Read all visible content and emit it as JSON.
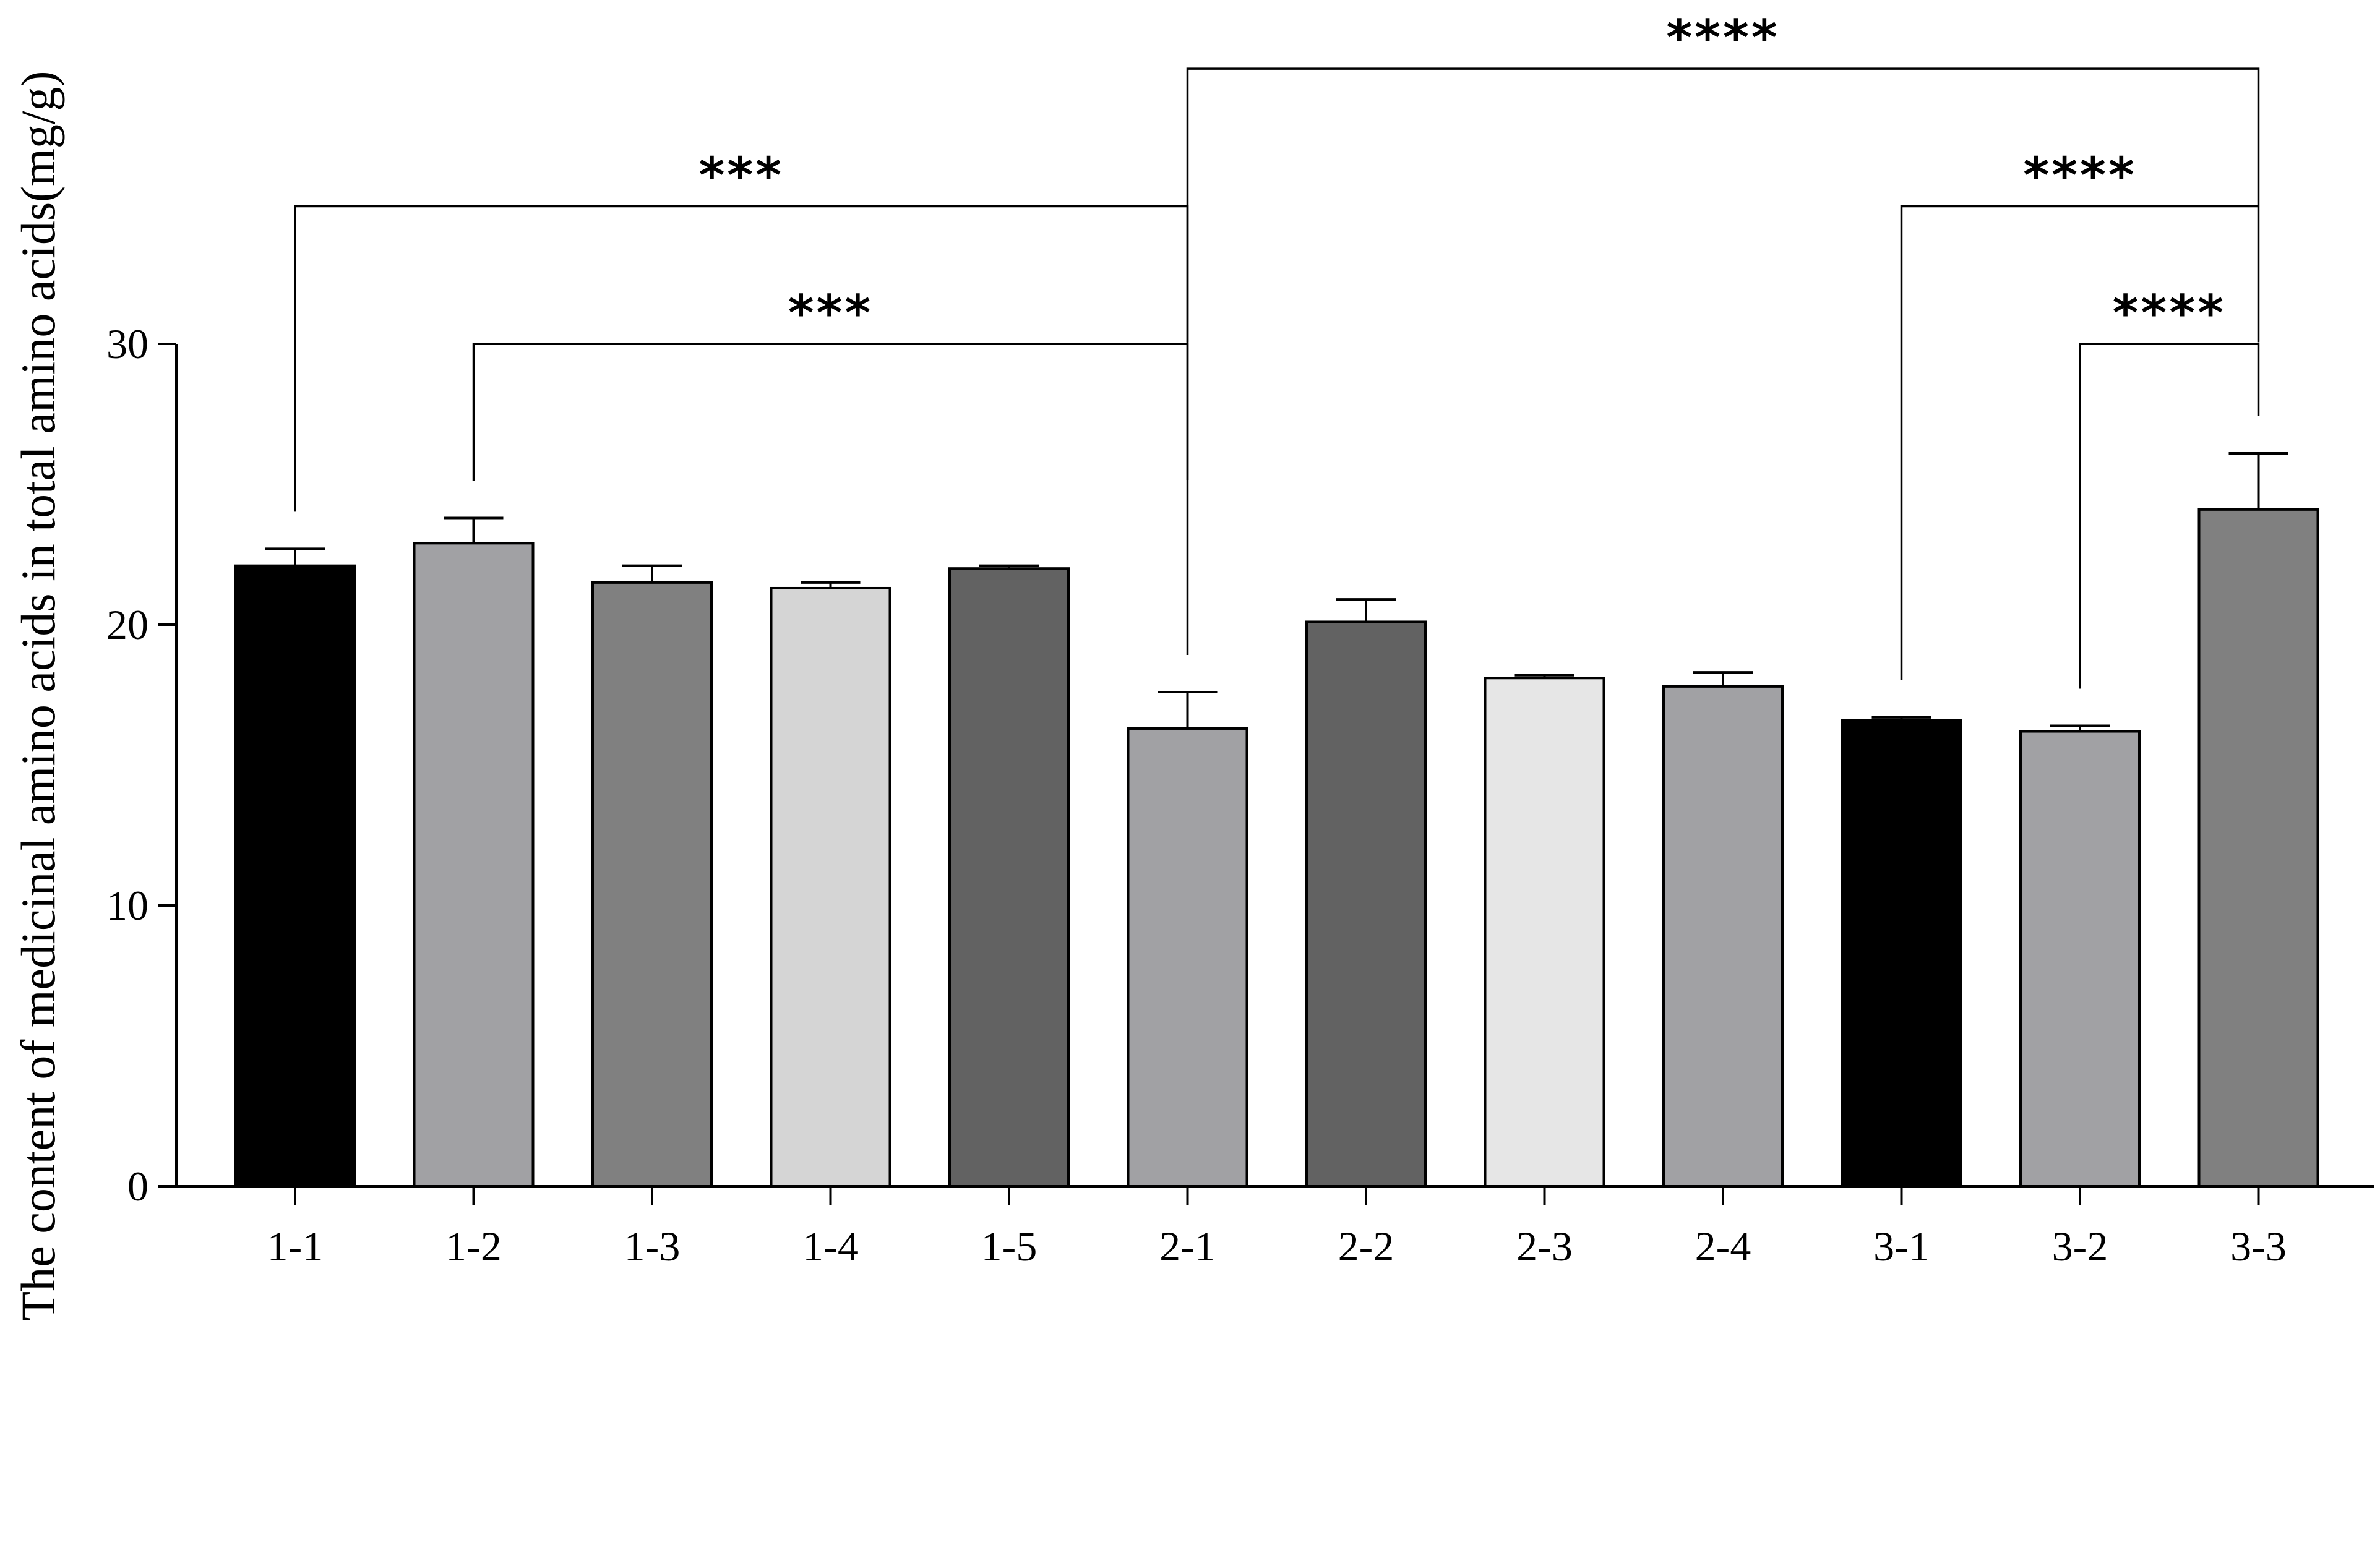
{
  "chart_data": {
    "type": "bar",
    "title": "",
    "xlabel": "",
    "ylabel": "The content of medicinal amino acids in total amino acids(mg/g)",
    "ylim": [
      0,
      30
    ],
    "yticks": [
      0,
      10,
      20,
      30
    ],
    "categories": [
      "1-1",
      "1-2",
      "1-3",
      "1-4",
      "1-5",
      "2-1",
      "2-2",
      "2-3",
      "2-4",
      "3-1",
      "3-2",
      "3-3"
    ],
    "values": [
      22.1,
      22.9,
      21.5,
      21.3,
      22.0,
      16.3,
      20.1,
      18.1,
      17.8,
      16.6,
      16.2,
      24.1
    ],
    "errors": [
      0.6,
      0.9,
      0.6,
      0.2,
      0.1,
      1.3,
      0.8,
      0.1,
      0.5,
      0.1,
      0.2,
      2.0
    ],
    "colors": [
      "#000000",
      "#a1a1a4",
      "#808080",
      "#d5d5d5",
      "#626262",
      "#a1a1a4",
      "#626262",
      "#e6e6e6",
      "#a1a1a4",
      "#000000",
      "#a1a1a4",
      "#808080"
    ],
    "legend": "none",
    "grid": false,
    "significance": [
      {
        "from": "1-2",
        "to": "2-1",
        "label": "***",
        "level": 30.0
      },
      {
        "from": "1-1",
        "to": "2-1",
        "label": "***",
        "level": 34.9
      },
      {
        "from": "3-2",
        "to": "3-3",
        "label": "****",
        "level": 30.0
      },
      {
        "from": "3-1",
        "to": "3-3",
        "label": "****",
        "level": 34.9
      },
      {
        "from": "2-1",
        "to": "3-3",
        "label": "****",
        "level": 39.8
      }
    ]
  }
}
